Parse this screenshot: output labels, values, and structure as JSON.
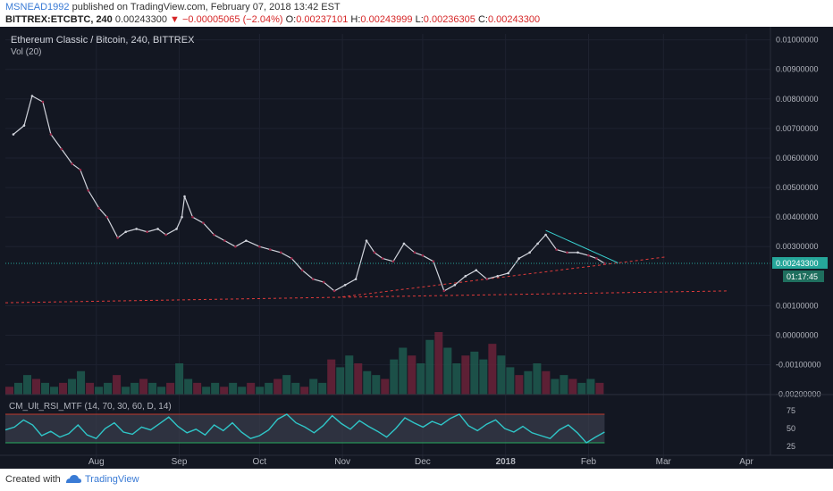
{
  "header": {
    "author": "MSNEAD1992",
    "published": "published on TradingView.com, February 07, 2018 13:42 EST",
    "symbol": "BITTREX:ETCBTC, 240",
    "last": "0.00243300",
    "change": "▼ −0.00005065 (−2.04%)",
    "o_label": "O:",
    "o": "0.00237101",
    "h_label": "H:",
    "h": "0.00243999",
    "l_label": "L:",
    "l": "0.00236305",
    "c_label": "C:",
    "c": "0.00243300"
  },
  "pane": {
    "title": "Ethereum Classic / Bitcoin, 240, BITTREX",
    "volume_label": "Vol (20)",
    "rsi_label": "CM_Ult_RSI_MTF (14, 70, 30, 60, D, 14)",
    "price_tag": "0.00243300",
    "countdown": "01:17:45"
  },
  "footer": {
    "created_with": "Created with",
    "brand": "TradingView"
  },
  "colors": {
    "background": "#131722",
    "candle_up": "#d1d4dc",
    "candle_down": "#9c2b4b",
    "trend_red": "#e03b3b",
    "trend_cyan": "#3ad4d4",
    "rsi_line": "#2fc6c8",
    "price_tag": "#26a69a"
  },
  "chart_data": {
    "type": "line",
    "title": "Ethereum Classic / Bitcoin, 240, BITTREX",
    "x": [
      "2017-07-01",
      "2017-07-05",
      "2017-07-08",
      "2017-07-12",
      "2017-07-15",
      "2017-07-19",
      "2017-07-23",
      "2017-07-26",
      "2017-07-29",
      "2017-08-02",
      "2017-08-05",
      "2017-08-09",
      "2017-08-12",
      "2017-08-16",
      "2017-08-20",
      "2017-08-24",
      "2017-08-27",
      "2017-08-31",
      "2017-09-02",
      "2017-09-03",
      "2017-09-06",
      "2017-09-10",
      "2017-09-14",
      "2017-09-18",
      "2017-09-22",
      "2017-09-26",
      "2017-10-01",
      "2017-10-05",
      "2017-10-09",
      "2017-10-13",
      "2017-10-17",
      "2017-10-21",
      "2017-10-25",
      "2017-10-29",
      "2017-11-02",
      "2017-11-06",
      "2017-11-10",
      "2017-11-13",
      "2017-11-16",
      "2017-11-20",
      "2017-11-24",
      "2017-11-28",
      "2017-12-01",
      "2017-12-05",
      "2017-12-09",
      "2017-12-13",
      "2017-12-17",
      "2017-12-21",
      "2017-12-25",
      "2017-12-29",
      "2018-01-02",
      "2018-01-06",
      "2018-01-10",
      "2018-01-13",
      "2018-01-16",
      "2018-01-20",
      "2018-01-24",
      "2018-01-28",
      "2018-02-01",
      "2018-02-04",
      "2018-02-07"
    ],
    "series": [
      {
        "values": [
          0.0068,
          0.0071,
          0.0081,
          0.0079,
          0.0068,
          0.0063,
          0.0058,
          0.0056,
          0.0049,
          0.0043,
          0.004,
          0.0033,
          0.0035,
          0.0036,
          0.0035,
          0.0036,
          0.0034,
          0.0036,
          0.004,
          0.0047,
          0.004,
          0.0038,
          0.0034,
          0.0032,
          0.003,
          0.0032,
          0.003,
          0.0029,
          0.0028,
          0.0026,
          0.0022,
          0.0019,
          0.0018,
          0.0015,
          0.0017,
          0.0019,
          0.0032,
          0.0028,
          0.0026,
          0.0025,
          0.0031,
          0.0028,
          0.0027,
          0.0025,
          0.0015,
          0.0017,
          0.002,
          0.0022,
          0.0019,
          0.002,
          0.0021,
          0.0026,
          0.0028,
          0.0031,
          0.0034,
          0.0029,
          0.0028,
          0.0028,
          0.0027,
          0.0026,
          0.002433
        ]
      }
    ],
    "trendlines": [
      {
        "x": [
          "2017-06-28",
          "2018-03-25"
        ],
        "y": [
          0.0011,
          0.0015
        ]
      },
      {
        "x": [
          "2017-11-01",
          "2018-03-02"
        ],
        "y": [
          0.0013,
          0.00265
        ]
      },
      {
        "x": [
          "2018-01-16",
          "2018-02-12"
        ],
        "y": [
          0.00355,
          0.00245
        ]
      }
    ],
    "x_ticks": [
      "Aug",
      "Sep",
      "Oct",
      "Nov",
      "Dec",
      "2018",
      "Feb",
      "Mar",
      "Apr"
    ],
    "y_ticks": [
      "-0.00200000",
      "-0.00100000",
      "0.00000000",
      "0.00100000",
      "0.00300000",
      "0.00400000",
      "0.00500000",
      "0.00600000",
      "0.00700000",
      "0.00800000",
      "0.00900000",
      "0.01000000"
    ],
    "ylim": [
      -0.0021,
      0.0102
    ],
    "rsi": {
      "ticks": [
        "75",
        "50",
        "25"
      ],
      "upper": 70,
      "lower": 30,
      "ylim": [
        15,
        85
      ],
      "values": [
        48,
        52,
        62,
        55,
        40,
        46,
        38,
        43,
        55,
        41,
        36,
        50,
        58,
        45,
        42,
        52,
        48,
        57,
        66,
        53,
        44,
        49,
        41,
        55,
        47,
        58,
        45,
        36,
        40,
        48,
        63,
        70,
        58,
        52,
        44,
        54,
        68,
        57,
        49,
        61,
        53,
        46,
        38,
        50,
        65,
        58,
        52,
        60,
        55,
        64,
        70,
        54,
        47,
        56,
        62,
        50,
        45,
        53,
        44,
        40,
        36,
        48,
        55,
        44,
        30,
        38,
        45
      ]
    },
    "volume": {
      "values": [
        2,
        3,
        5,
        4,
        3,
        2,
        3,
        4,
        6,
        3,
        2,
        3,
        5,
        2,
        3,
        4,
        3,
        2,
        3,
        8,
        4,
        3,
        2,
        3,
        2,
        3,
        2,
        3,
        2,
        3,
        4,
        5,
        3,
        2,
        4,
        3,
        9,
        7,
        10,
        8,
        6,
        5,
        4,
        9,
        12,
        10,
        8,
        14,
        16,
        12,
        8,
        10,
        11,
        9,
        13,
        10,
        7,
        5,
        6,
        8,
        6,
        4,
        5,
        4,
        3,
        4,
        3
      ]
    },
    "grid": true,
    "legend": "none"
  }
}
